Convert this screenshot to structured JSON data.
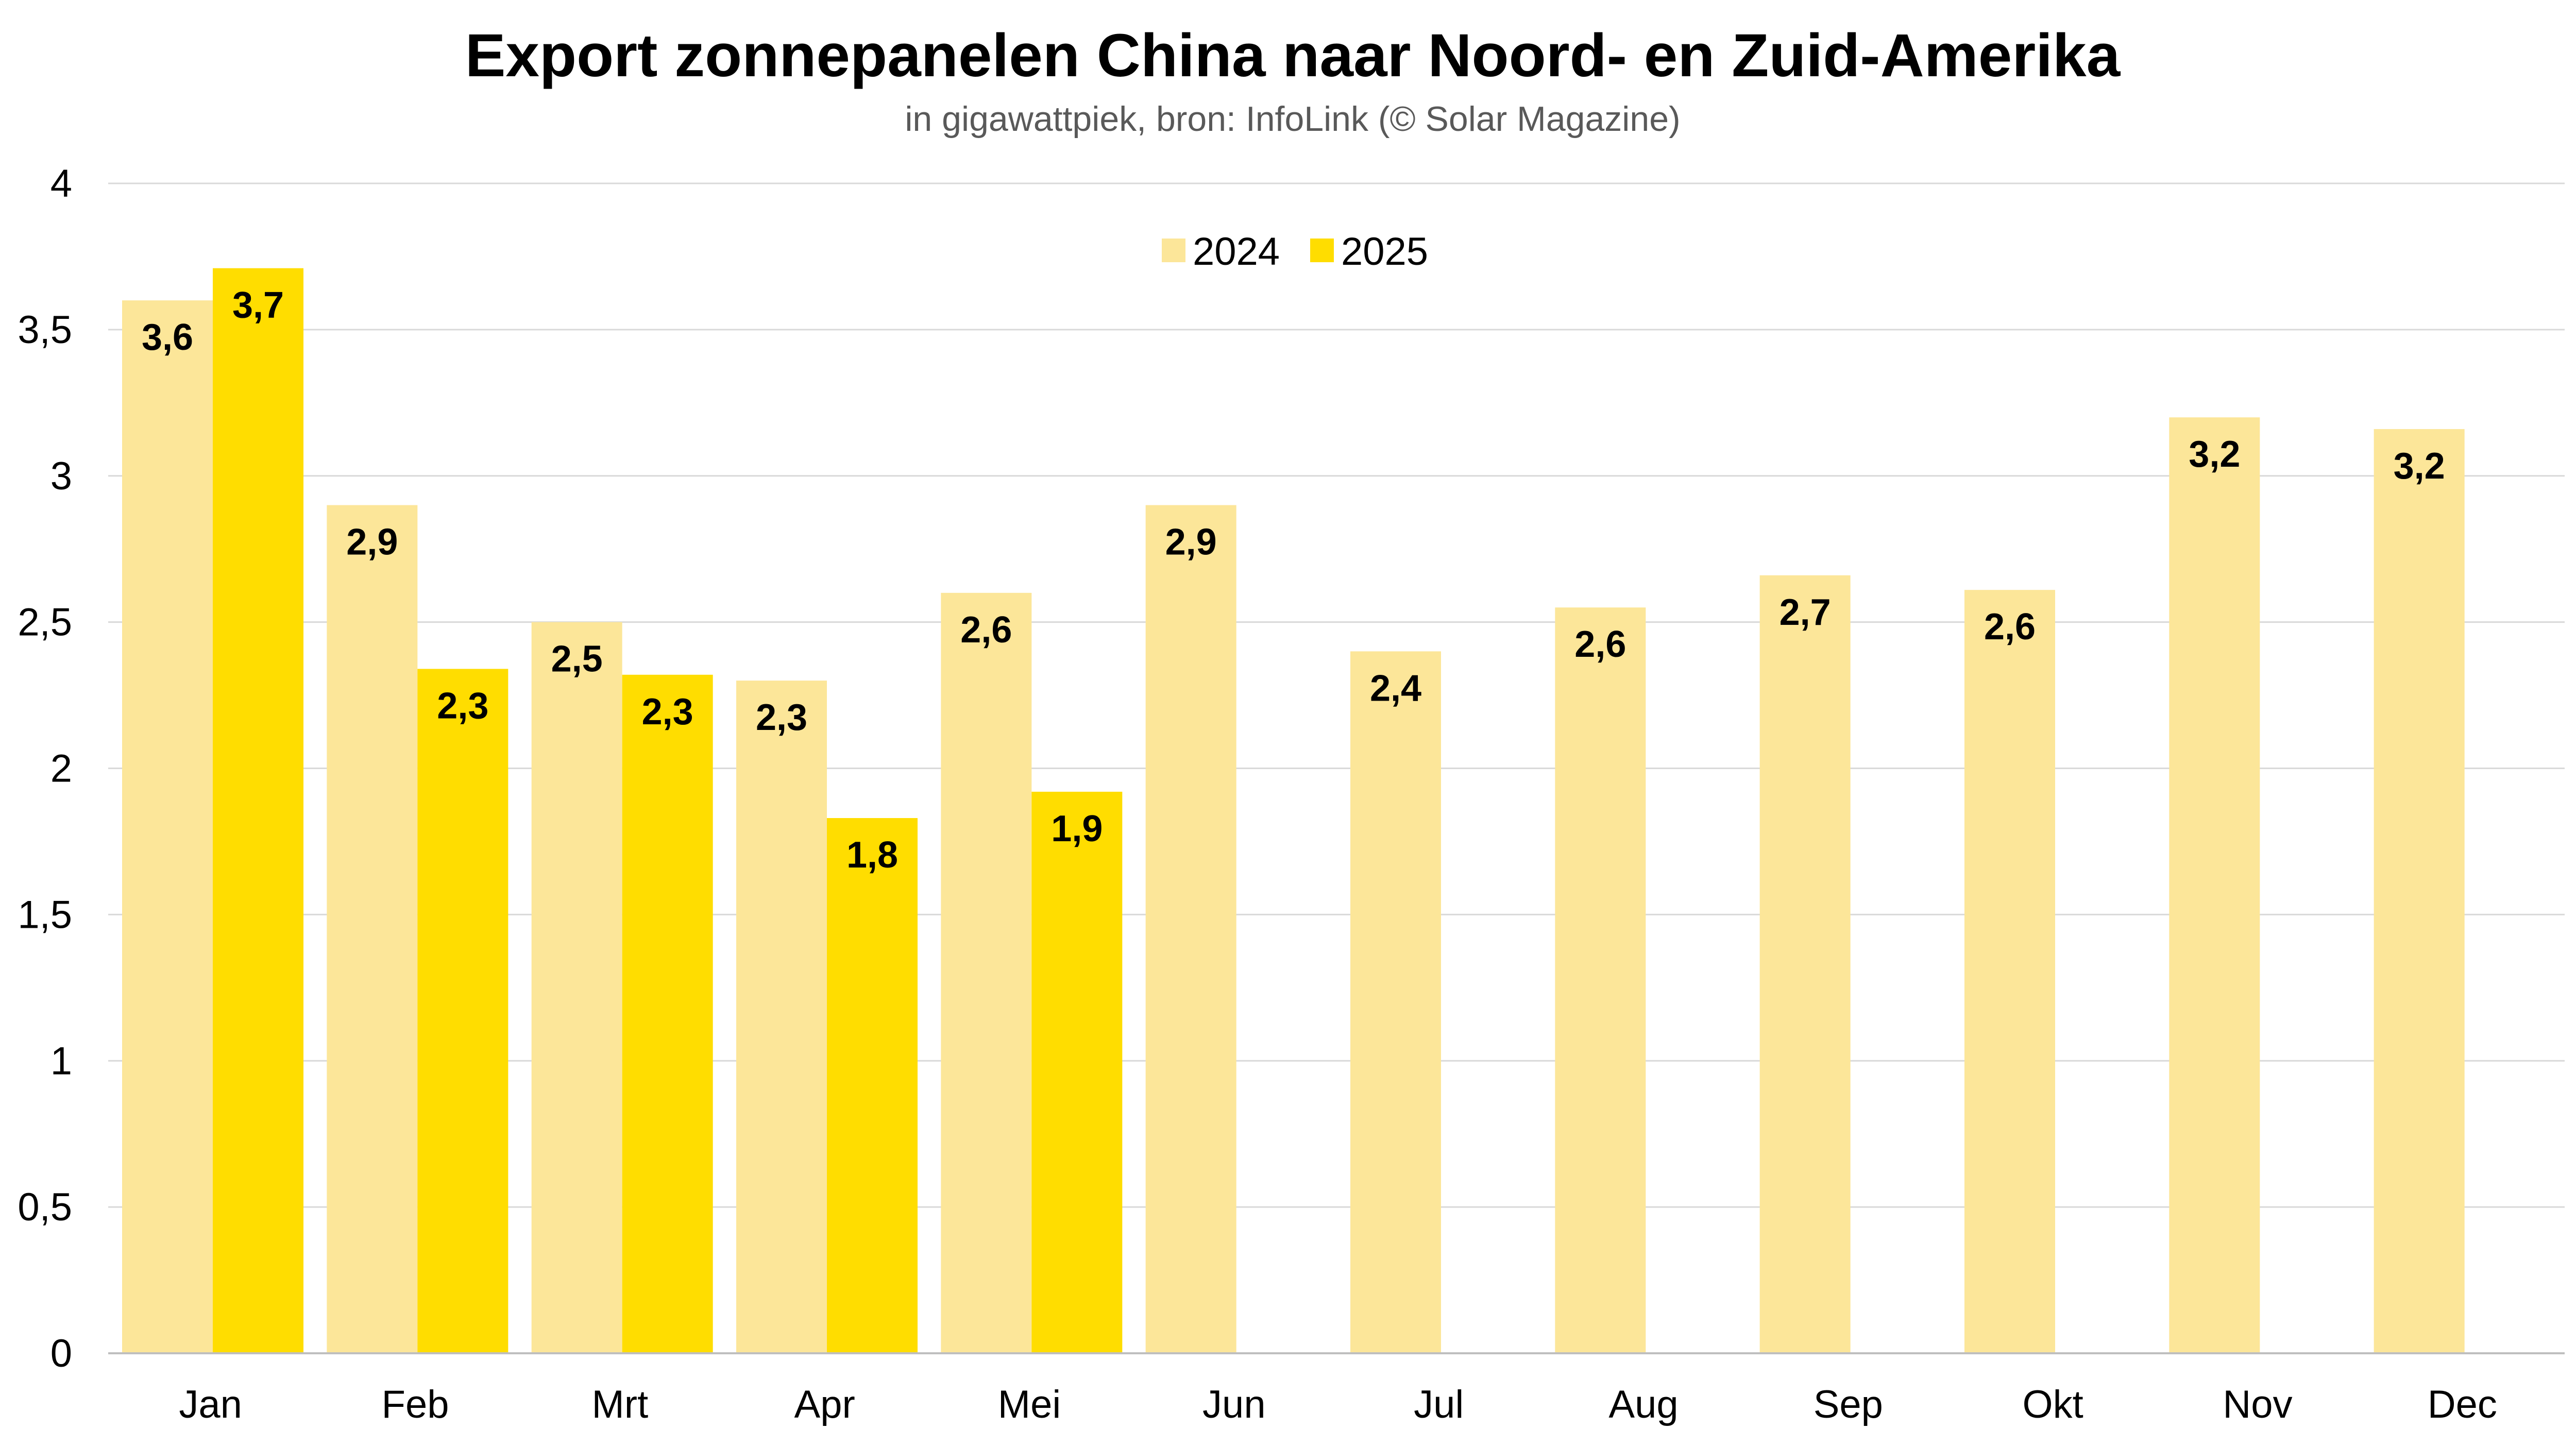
{
  "chart_data": {
    "type": "bar",
    "title": "Export zonnepanelen China naar Noord- en Zuid-Amerika",
    "subtitle": "in gigawattpiek, bron: InfoLink (© Solar Magazine)",
    "xlabel": "",
    "ylabel": "",
    "categories": [
      "Jan",
      "Feb",
      "Mrt",
      "Apr",
      "Mei",
      "Jun",
      "Jul",
      "Aug",
      "Sep",
      "Okt",
      "Nov",
      "Dec"
    ],
    "series": [
      {
        "name": "2024",
        "color": "#FCE699",
        "values": [
          3.6,
          2.9,
          2.5,
          2.3,
          2.6,
          2.9,
          2.4,
          2.55,
          2.66,
          2.61,
          3.2,
          3.16
        ],
        "labels": [
          "3,6",
          "2,9",
          "2,5",
          "2,3",
          "2,6",
          "2,9",
          "2,4",
          "2,6",
          "2,7",
          "2,6",
          "3,2",
          "3,2"
        ]
      },
      {
        "name": "2025",
        "color": "#FFDD00",
        "values": [
          3.71,
          2.34,
          2.32,
          1.83,
          1.92,
          null,
          null,
          null,
          null,
          null,
          null,
          null
        ],
        "labels": [
          "3,7",
          "2,3",
          "2,3",
          "1,8",
          "1,9",
          null,
          null,
          null,
          null,
          null,
          null,
          null
        ]
      }
    ],
    "ylim": [
      0,
      4
    ],
    "y_ticks": [
      0,
      0.5,
      1,
      1.5,
      2,
      2.5,
      3,
      3.5,
      4
    ],
    "y_tick_labels": [
      "0",
      "0,5",
      "1",
      "1,5",
      "2",
      "2,5",
      "3",
      "3,5",
      "4"
    ],
    "grid": true,
    "legend": "top-center",
    "decimal_separator": ","
  }
}
